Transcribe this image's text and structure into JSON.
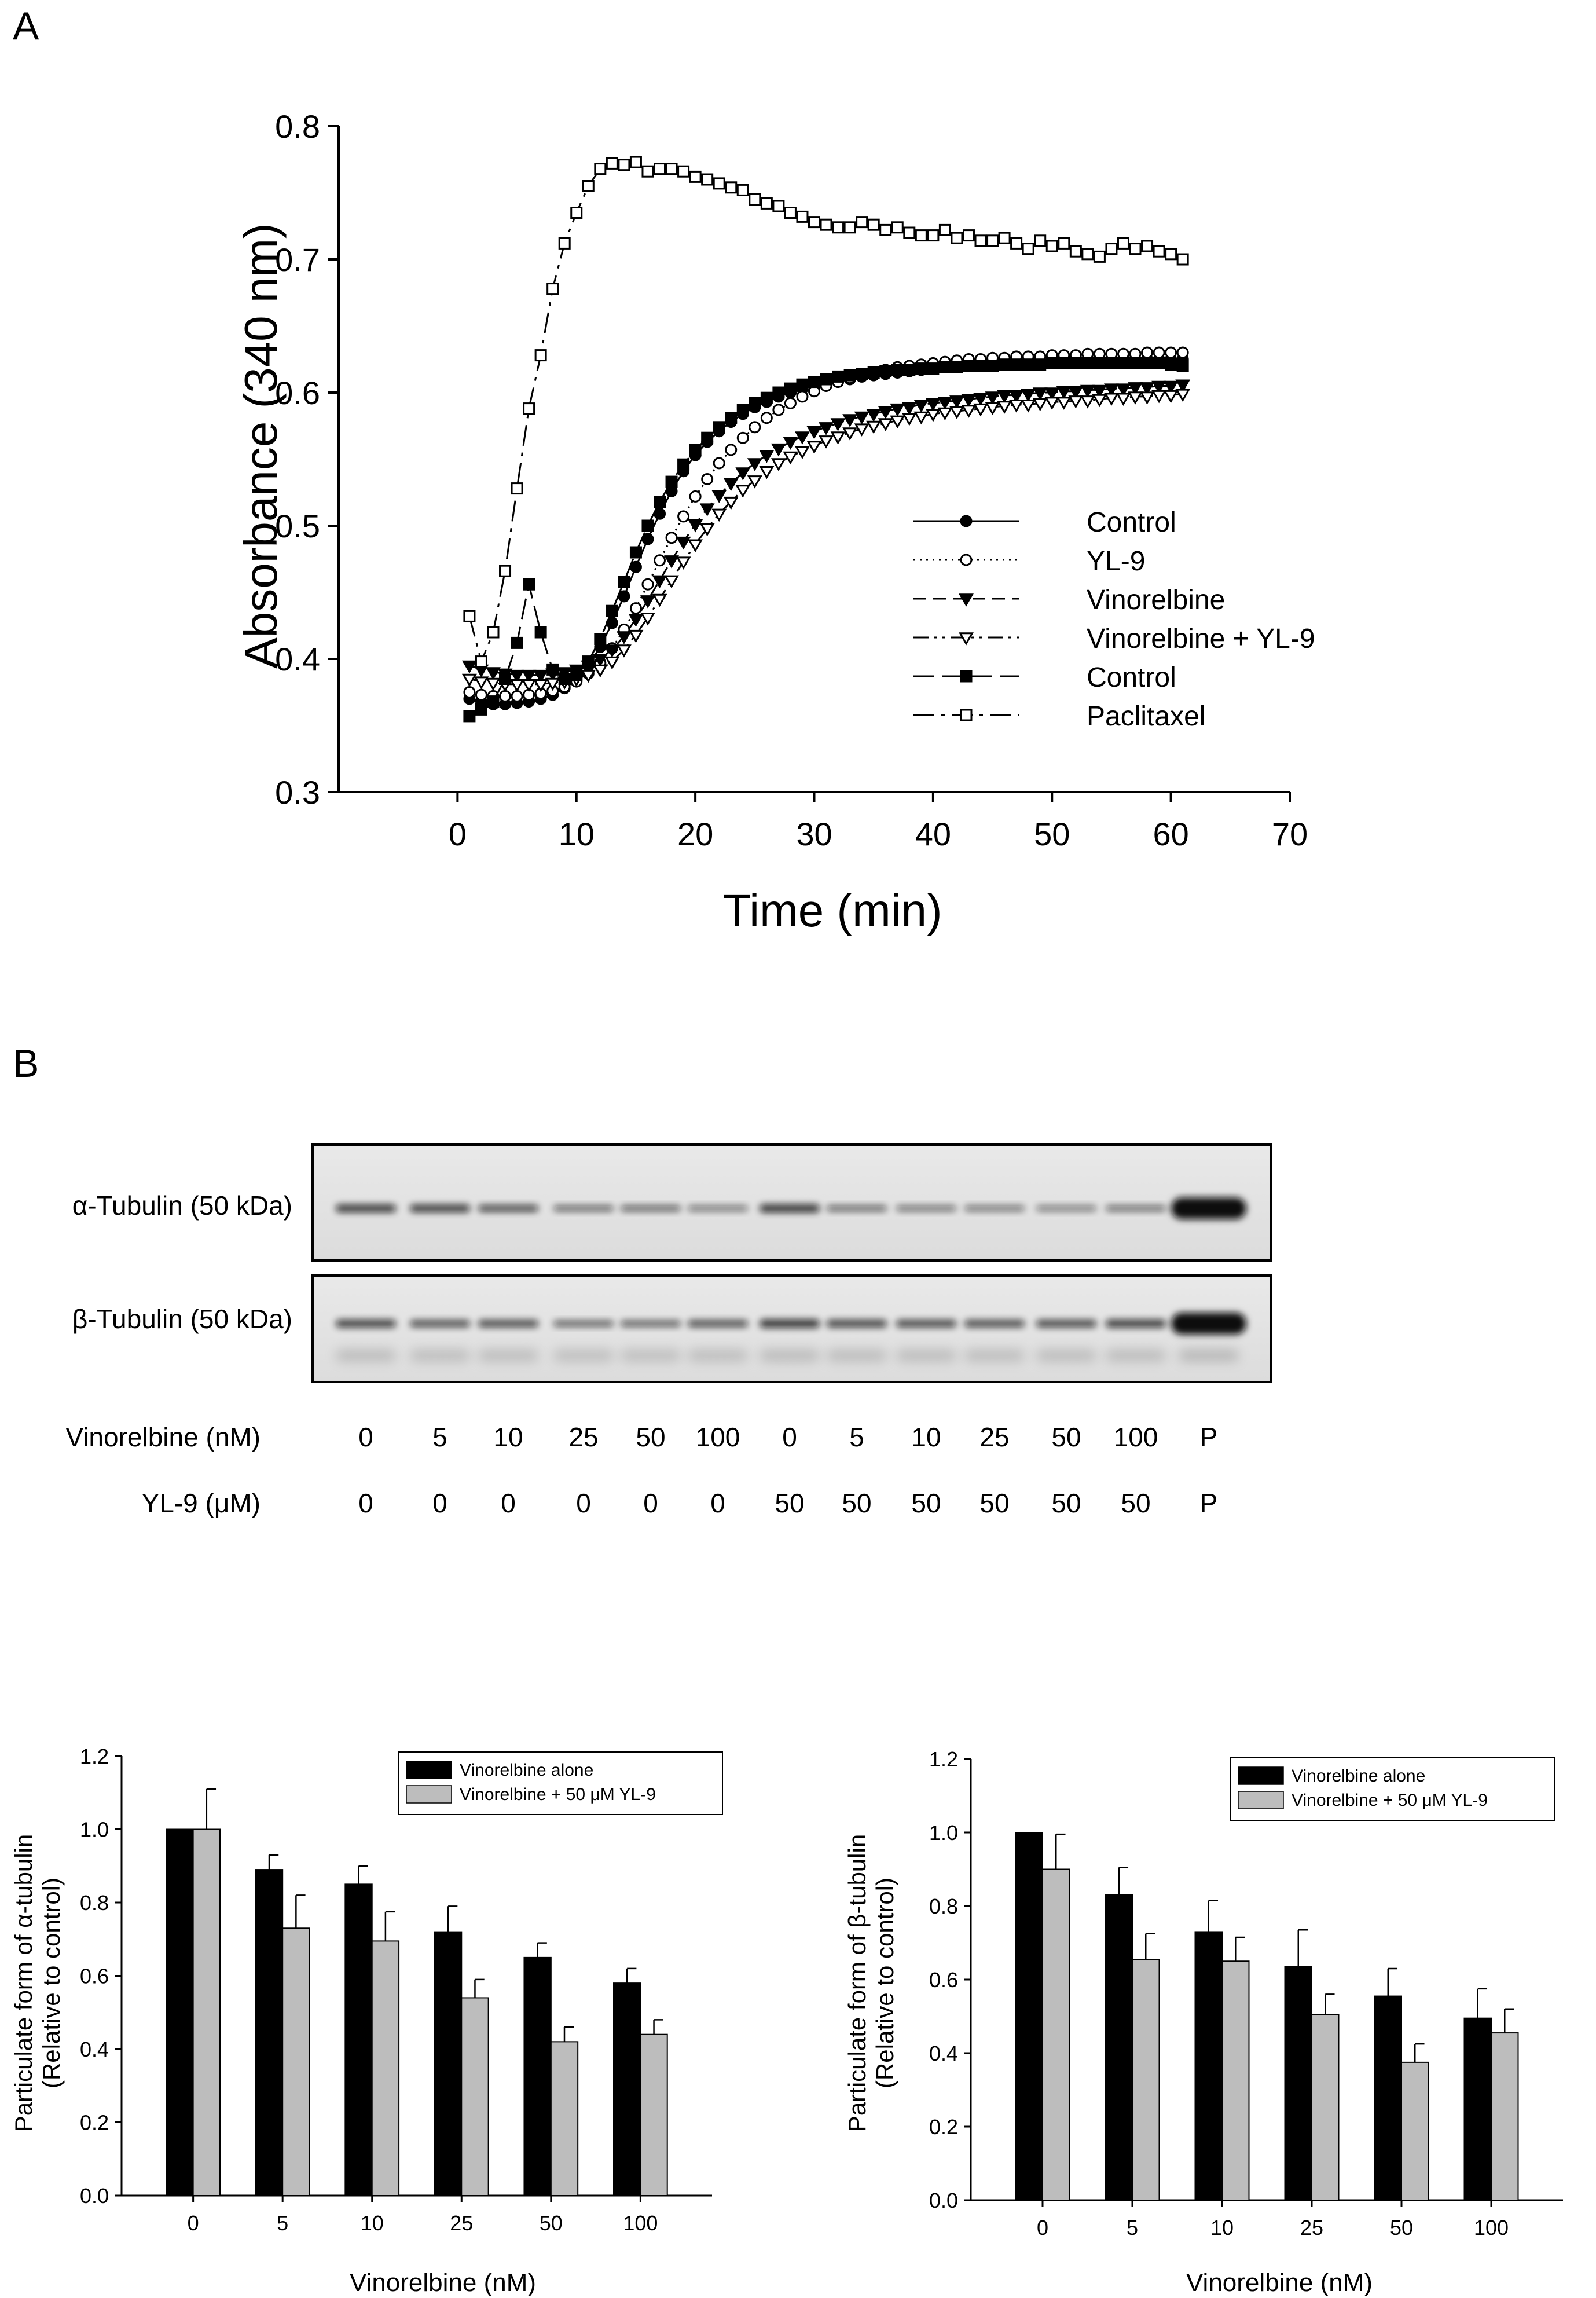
{
  "panels": {
    "a": "A",
    "b": "B"
  },
  "chart_data": [
    {
      "id": "turbidity",
      "type": "line",
      "panel": "A",
      "xlabel": "Time (min)",
      "ylabel": "Absorbance (340 nm)",
      "xlim": [
        -10,
        70
      ],
      "ylim": [
        0.3,
        0.8
      ],
      "xticks": [
        0,
        10,
        20,
        30,
        40,
        50,
        60,
        70
      ],
      "yticks": [
        0.3,
        0.4,
        0.5,
        0.6,
        0.7,
        0.8
      ],
      "legend_position": "right-center",
      "series": [
        {
          "name": "Control",
          "marker": "circle-filled",
          "line": "solid",
          "x": [
            1,
            2,
            3,
            4,
            5,
            6,
            7,
            8,
            9,
            10,
            11,
            12,
            13,
            14,
            15,
            16,
            17,
            18,
            19,
            20,
            21,
            22,
            23,
            24,
            25,
            26,
            27,
            28,
            29,
            30,
            31,
            32,
            33,
            34,
            35,
            36,
            37,
            38,
            39,
            40,
            41,
            42,
            43,
            44,
            45,
            46,
            47,
            48,
            49,
            50,
            51,
            52,
            53,
            54,
            55,
            56,
            57,
            58,
            59,
            60,
            61
          ],
          "y": [
            0.37,
            0.368,
            0.366,
            0.366,
            0.367,
            0.368,
            0.37,
            0.373,
            0.378,
            0.385,
            0.395,
            0.409,
            0.427,
            0.447,
            0.469,
            0.49,
            0.509,
            0.526,
            0.541,
            0.553,
            0.563,
            0.571,
            0.578,
            0.584,
            0.589,
            0.593,
            0.597,
            0.6,
            0.603,
            0.605,
            0.607,
            0.609,
            0.61,
            0.612,
            0.613,
            0.614,
            0.615,
            0.616,
            0.617,
            0.618,
            0.619,
            0.619,
            0.62,
            0.62,
            0.621,
            0.621,
            0.622,
            0.622,
            0.622,
            0.623,
            0.623,
            0.623,
            0.624,
            0.624,
            0.624,
            0.624,
            0.625,
            0.625,
            0.625,
            0.625,
            0.625
          ]
        },
        {
          "name": "YL-9",
          "marker": "circle-open",
          "line": "dotted",
          "x": [
            1,
            2,
            3,
            4,
            5,
            6,
            7,
            8,
            9,
            10,
            11,
            12,
            13,
            14,
            15,
            16,
            17,
            18,
            19,
            20,
            21,
            22,
            23,
            24,
            25,
            26,
            27,
            28,
            29,
            30,
            31,
            32,
            33,
            34,
            35,
            36,
            37,
            38,
            39,
            40,
            41,
            42,
            43,
            44,
            45,
            46,
            47,
            48,
            49,
            50,
            51,
            52,
            53,
            54,
            55,
            56,
            57,
            58,
            59,
            60,
            61
          ],
          "y": [
            0.375,
            0.373,
            0.372,
            0.372,
            0.372,
            0.373,
            0.374,
            0.376,
            0.379,
            0.383,
            0.389,
            0.397,
            0.408,
            0.422,
            0.438,
            0.456,
            0.474,
            0.491,
            0.507,
            0.522,
            0.535,
            0.547,
            0.557,
            0.566,
            0.574,
            0.581,
            0.587,
            0.592,
            0.597,
            0.601,
            0.605,
            0.608,
            0.611,
            0.613,
            0.615,
            0.617,
            0.619,
            0.62,
            0.621,
            0.622,
            0.623,
            0.624,
            0.625,
            0.625,
            0.626,
            0.626,
            0.627,
            0.627,
            0.627,
            0.628,
            0.628,
            0.628,
            0.629,
            0.629,
            0.629,
            0.629,
            0.629,
            0.63,
            0.63,
            0.63,
            0.63
          ]
        },
        {
          "name": "Vinorelbine",
          "marker": "triangle-down-filled",
          "line": "dashed",
          "x": [
            1,
            2,
            3,
            4,
            5,
            6,
            7,
            8,
            9,
            10,
            11,
            12,
            13,
            14,
            15,
            16,
            17,
            18,
            19,
            20,
            21,
            22,
            23,
            24,
            25,
            26,
            27,
            28,
            29,
            30,
            31,
            32,
            33,
            34,
            35,
            36,
            37,
            38,
            39,
            40,
            41,
            42,
            43,
            44,
            45,
            46,
            47,
            48,
            49,
            50,
            51,
            52,
            53,
            54,
            55,
            56,
            57,
            58,
            59,
            60,
            61
          ],
          "y": [
            0.395,
            0.392,
            0.39,
            0.389,
            0.388,
            0.388,
            0.388,
            0.389,
            0.39,
            0.392,
            0.395,
            0.4,
            0.407,
            0.417,
            0.43,
            0.444,
            0.459,
            0.474,
            0.488,
            0.501,
            0.513,
            0.523,
            0.532,
            0.54,
            0.547,
            0.553,
            0.558,
            0.563,
            0.567,
            0.571,
            0.574,
            0.577,
            0.58,
            0.582,
            0.584,
            0.586,
            0.588,
            0.589,
            0.591,
            0.592,
            0.593,
            0.594,
            0.595,
            0.596,
            0.597,
            0.598,
            0.598,
            0.599,
            0.6,
            0.6,
            0.601,
            0.601,
            0.602,
            0.602,
            0.603,
            0.603,
            0.604,
            0.604,
            0.605,
            0.605,
            0.606
          ]
        },
        {
          "name": "Vinorelbine + YL-9",
          "marker": "triangle-down-open",
          "line": "dash-dot-dot",
          "x": [
            1,
            2,
            3,
            4,
            5,
            6,
            7,
            8,
            9,
            10,
            11,
            12,
            13,
            14,
            15,
            16,
            17,
            18,
            19,
            20,
            21,
            22,
            23,
            24,
            25,
            26,
            27,
            28,
            29,
            30,
            31,
            32,
            33,
            34,
            35,
            36,
            37,
            38,
            39,
            40,
            41,
            42,
            43,
            44,
            45,
            46,
            47,
            48,
            49,
            50,
            51,
            52,
            53,
            54,
            55,
            56,
            57,
            58,
            59,
            60,
            61
          ],
          "y": [
            0.385,
            0.383,
            0.382,
            0.381,
            0.381,
            0.381,
            0.381,
            0.382,
            0.383,
            0.385,
            0.388,
            0.392,
            0.398,
            0.407,
            0.418,
            0.431,
            0.445,
            0.459,
            0.473,
            0.486,
            0.498,
            0.509,
            0.518,
            0.527,
            0.534,
            0.541,
            0.547,
            0.552,
            0.556,
            0.56,
            0.564,
            0.567,
            0.57,
            0.573,
            0.575,
            0.577,
            0.579,
            0.581,
            0.582,
            0.584,
            0.585,
            0.586,
            0.587,
            0.588,
            0.589,
            0.59,
            0.591,
            0.591,
            0.592,
            0.593,
            0.593,
            0.594,
            0.594,
            0.595,
            0.596,
            0.596,
            0.597,
            0.597,
            0.598,
            0.598,
            0.599
          ]
        },
        {
          "name": "Control",
          "marker": "square-filled",
          "line": "long-dash",
          "x": [
            1,
            2,
            3,
            4,
            5,
            6,
            7,
            8,
            9,
            10,
            11,
            12,
            13,
            14,
            15,
            16,
            17,
            18,
            19,
            20,
            21,
            22,
            23,
            24,
            25,
            26,
            27,
            28,
            29,
            30,
            31,
            32,
            33,
            34,
            35,
            36,
            37,
            38,
            39,
            40,
            41,
            42,
            43,
            44,
            45,
            46,
            47,
            48,
            49,
            50,
            51,
            52,
            53,
            54,
            55,
            56,
            57,
            58,
            59,
            60,
            61
          ],
          "y": [
            0.357,
            0.362,
            0.368,
            0.385,
            0.412,
            0.456,
            0.42,
            0.392,
            0.385,
            0.388,
            0.398,
            0.415,
            0.436,
            0.458,
            0.48,
            0.5,
            0.518,
            0.533,
            0.546,
            0.557,
            0.566,
            0.574,
            0.581,
            0.587,
            0.592,
            0.596,
            0.6,
            0.603,
            0.606,
            0.608,
            0.61,
            0.612,
            0.613,
            0.614,
            0.615,
            0.616,
            0.617,
            0.617,
            0.618,
            0.618,
            0.619,
            0.619,
            0.62,
            0.62,
            0.62,
            0.621,
            0.621,
            0.621,
            0.621,
            0.622,
            0.622,
            0.622,
            0.622,
            0.622,
            0.622,
            0.622,
            0.622,
            0.622,
            0.622,
            0.621,
            0.62
          ]
        },
        {
          "name": "Paclitaxel",
          "marker": "square-open",
          "line": "long-dash-dot",
          "x": [
            1,
            2,
            3,
            4,
            5,
            6,
            7,
            8,
            9,
            10,
            11,
            12,
            13,
            14,
            15,
            16,
            17,
            18,
            19,
            20,
            21,
            22,
            23,
            24,
            25,
            26,
            27,
            28,
            29,
            30,
            31,
            32,
            33,
            34,
            35,
            36,
            37,
            38,
            39,
            40,
            41,
            42,
            43,
            44,
            45,
            46,
            47,
            48,
            49,
            50,
            51,
            52,
            53,
            54,
            55,
            56,
            57,
            58,
            59,
            60,
            61
          ],
          "y": [
            0.432,
            0.398,
            0.42,
            0.466,
            0.528,
            0.588,
            0.628,
            0.678,
            0.712,
            0.735,
            0.755,
            0.768,
            0.772,
            0.771,
            0.773,
            0.766,
            0.768,
            0.768,
            0.766,
            0.762,
            0.76,
            0.757,
            0.754,
            0.752,
            0.745,
            0.742,
            0.74,
            0.735,
            0.732,
            0.728,
            0.726,
            0.724,
            0.724,
            0.728,
            0.726,
            0.722,
            0.724,
            0.72,
            0.718,
            0.718,
            0.722,
            0.716,
            0.718,
            0.714,
            0.714,
            0.716,
            0.712,
            0.708,
            0.714,
            0.71,
            0.712,
            0.706,
            0.704,
            0.702,
            0.708,
            0.712,
            0.708,
            0.71,
            0.706,
            0.704,
            0.7
          ]
        }
      ]
    },
    {
      "id": "alpha-bars",
      "type": "bar",
      "panel": "B",
      "ylabel_line1": "Particulate form of α-tubulin",
      "ylabel_line2": "(Relative to control)",
      "xlabel": "Vinorelbine (nM)",
      "categories": [
        "0",
        "5",
        "10",
        "25",
        "50",
        "100"
      ],
      "ylim": [
        0.0,
        1.2
      ],
      "yticks": [
        "0.0",
        "0.2",
        "0.4",
        "0.6",
        "0.8",
        "1.0",
        "1.2"
      ],
      "legend_position": "top-right",
      "series": [
        {
          "name": "Vinorelbine alone",
          "color": "#000000",
          "values": [
            1.0,
            0.89,
            0.85,
            0.72,
            0.65,
            0.58
          ],
          "errors": [
            0.0,
            0.04,
            0.05,
            0.07,
            0.04,
            0.04
          ]
        },
        {
          "name": "Vinorelbine + 50 μM YL-9",
          "color": "#bdbdbd",
          "values": [
            1.0,
            0.73,
            0.695,
            0.54,
            0.42,
            0.44
          ],
          "errors": [
            0.11,
            0.09,
            0.08,
            0.05,
            0.04,
            0.04
          ]
        }
      ]
    },
    {
      "id": "beta-bars",
      "type": "bar",
      "panel": "B",
      "ylabel_line1": "Particulate form of β-tubulin",
      "ylabel_line2": "(Relative to control)",
      "xlabel": "Vinorelbine (nM)",
      "categories": [
        "0",
        "5",
        "10",
        "25",
        "50",
        "100"
      ],
      "ylim": [
        0.0,
        1.2
      ],
      "yticks": [
        "0.0",
        "0.2",
        "0.4",
        "0.6",
        "0.8",
        "1.0",
        "1.2"
      ],
      "legend_position": "top-right",
      "series": [
        {
          "name": "Vinorelbine alone",
          "color": "#000000",
          "values": [
            1.0,
            0.83,
            0.73,
            0.635,
            0.555,
            0.495
          ],
          "errors": [
            0.0,
            0.075,
            0.085,
            0.1,
            0.075,
            0.08
          ]
        },
        {
          "name": "Vinorelbine + 50 μM YL-9",
          "color": "#bdbdbd",
          "values": [
            0.9,
            0.655,
            0.65,
            0.505,
            0.375,
            0.455
          ],
          "errors": [
            0.095,
            0.07,
            0.065,
            0.055,
            0.05,
            0.065
          ]
        }
      ]
    }
  ],
  "blot": {
    "rows": [
      {
        "label": "α-Tubulin (50 kDa)",
        "intensities": [
          0.95,
          0.92,
          0.82,
          0.6,
          0.62,
          0.45,
          0.98,
          0.6,
          0.5,
          0.48,
          0.42,
          0.55,
          1.4
        ]
      },
      {
        "label": "β-Tubulin (50 kDa)",
        "intensities": [
          0.92,
          0.82,
          0.85,
          0.7,
          0.72,
          0.82,
          1.0,
          0.9,
          0.88,
          0.85,
          0.88,
          0.95,
          1.4
        ]
      }
    ],
    "conditions": [
      {
        "label": "Vinorelbine (nM)",
        "values": [
          "0",
          "5",
          "10",
          "25",
          "50",
          "100",
          "0",
          "5",
          "10",
          "25",
          "50",
          "100",
          "P"
        ]
      },
      {
        "label": "YL-9 (μM)",
        "values": [
          "0",
          "0",
          "0",
          "0",
          "0",
          "0",
          "50",
          "50",
          "50",
          "50",
          "50",
          "50",
          "P"
        ]
      }
    ]
  }
}
